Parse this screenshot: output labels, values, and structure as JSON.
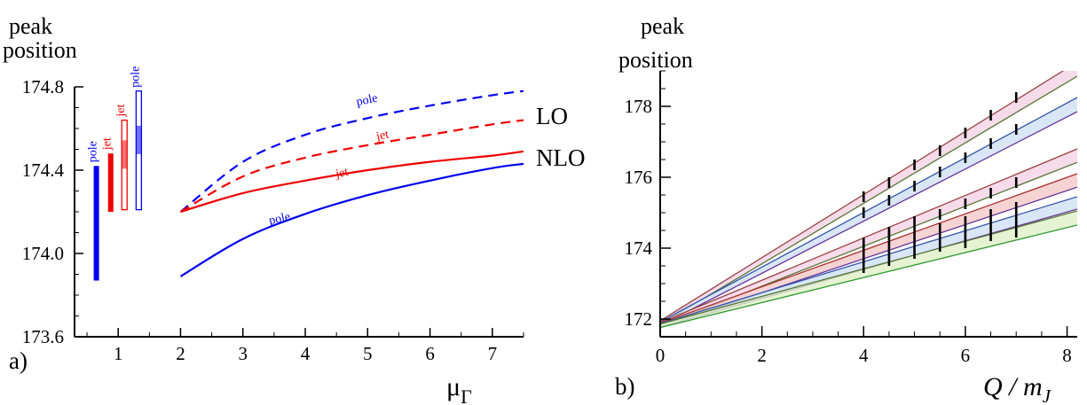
{
  "chart_data": [
    {
      "type": "line",
      "panel_label": "a)",
      "title": "",
      "ylabel": [
        "peak",
        "position"
      ],
      "xlabel": "μ",
      "xlabel_sub": "Γ",
      "xlim": [
        0.3,
        7.5
      ],
      "ylim": [
        173.6,
        174.8
      ],
      "xticks": [
        1,
        2,
        3,
        4,
        5,
        6,
        7
      ],
      "yticks": [
        173.6,
        174.0,
        174.4,
        174.8
      ],
      "ytick_labels": [
        "173.6",
        "174.0",
        "174.4",
        "174.8"
      ],
      "grid": false,
      "series": [
        {
          "name": "pole",
          "order": "LO",
          "color": "#0000ee",
          "dashed": true,
          "x": [
            2,
            3,
            4,
            5,
            6,
            7,
            7.5
          ],
          "y": [
            174.2,
            174.44,
            174.57,
            174.65,
            174.71,
            174.76,
            174.78
          ]
        },
        {
          "name": "jet",
          "order": "LO",
          "color": "#ee0000",
          "dashed": true,
          "x": [
            2,
            3,
            4,
            5,
            6,
            7,
            7.5
          ],
          "y": [
            174.2,
            174.37,
            174.46,
            174.52,
            174.57,
            174.62,
            174.64
          ]
        },
        {
          "name": "jet",
          "order": "NLO",
          "color": "#ee0000",
          "dashed": false,
          "x": [
            2,
            3,
            4,
            5,
            6,
            7,
            7.5
          ],
          "y": [
            174.2,
            174.29,
            174.35,
            174.4,
            174.44,
            174.47,
            174.49
          ]
        },
        {
          "name": "pole",
          "order": "NLO",
          "color": "#0000ee",
          "dashed": false,
          "x": [
            2,
            3,
            4,
            5,
            6,
            7,
            7.5
          ],
          "y": [
            173.89,
            174.07,
            174.19,
            174.28,
            174.35,
            174.41,
            174.43
          ]
        }
      ],
      "curve_labels": [
        {
          "text": "pole",
          "color": "#0000ee",
          "x": 5.0,
          "y": 174.72
        },
        {
          "text": "jet",
          "color": "#ee0000",
          "x": 5.25,
          "y": 174.55
        },
        {
          "text": "jet",
          "color": "#ee0000",
          "x": 4.6,
          "y": 174.37
        },
        {
          "text": "pole",
          "color": "#0000ee",
          "x": 3.6,
          "y": 174.15
        }
      ],
      "right_labels": [
        {
          "text": "LO",
          "y": 174.66
        },
        {
          "text": "NLO",
          "y": 174.46
        }
      ],
      "error_bars": [
        {
          "label": "pole",
          "color": "#0000ee",
          "x": 0.65,
          "y_low": 173.87,
          "y_high": 174.42,
          "style": "solid"
        },
        {
          "label": "jet",
          "color": "#ee0000",
          "x": 0.88,
          "y_low": 174.2,
          "y_high": 174.48,
          "style": "solid"
        },
        {
          "label": "jet",
          "color": "#ee0000",
          "x": 1.1,
          "y_low": 174.21,
          "y_high": 174.64,
          "style": "open"
        },
        {
          "label": "pole",
          "color": "#0000ee",
          "x": 1.33,
          "y_low": 174.21,
          "y_high": 174.78,
          "style": "open"
        }
      ]
    },
    {
      "type": "line",
      "panel_label": "b)",
      "title": "",
      "ylabel": [
        "peak",
        "position"
      ],
      "xlabel": "Q / m",
      "xlabel_sub": "J",
      "xlim": [
        0,
        8.2
      ],
      "ylim": [
        171.5,
        179.0
      ],
      "xticks": [
        0,
        2,
        4,
        6,
        8
      ],
      "yticks": [
        172,
        174,
        176,
        178
      ],
      "ytick_labels": [
        "172",
        "174",
        "176",
        "178"
      ],
      "grid": false,
      "bands": [
        {
          "fill": "#f4d2e6",
          "x": [
            0,
            8.2
          ],
          "upper": [
            171.95,
            179.25
          ],
          "lower": [
            171.85,
            178.85
          ],
          "edge_upper": "#994444",
          "edge_lower": "#557733"
        },
        {
          "fill": "#cfe0f4",
          "x": [
            0,
            8.2
          ],
          "upper": [
            171.92,
            178.25
          ],
          "lower": [
            171.82,
            177.85
          ],
          "edge_upper": "#3355aa",
          "edge_lower": "#663399"
        },
        {
          "fill": "#f4d2e6",
          "x": [
            0,
            8.2
          ],
          "upper": [
            171.9,
            176.8
          ],
          "lower": [
            171.8,
            176.42
          ],
          "edge_upper": "#994444",
          "edge_lower": "#557733"
        },
        {
          "fill": "#f4c8c8",
          "x": [
            0,
            8.2
          ],
          "upper": [
            171.88,
            176.1
          ],
          "lower": [
            171.78,
            175.72
          ],
          "edge_upper": "#aa3333",
          "edge_lower": "#663399"
        },
        {
          "fill": "#cfe0f4",
          "x": [
            0,
            8.2
          ],
          "upper": [
            171.87,
            175.45
          ],
          "lower": [
            171.77,
            175.1
          ],
          "edge_upper": "#3355aa",
          "edge_lower": "#663399"
        },
        {
          "fill": "#dff0c8",
          "x": [
            0,
            8.2
          ],
          "upper": [
            171.86,
            175.05
          ],
          "lower": [
            171.76,
            174.65
          ],
          "edge_upper": "#557733",
          "edge_lower": "#339933"
        }
      ],
      "error_bars": [
        {
          "x": 4.0,
          "y_low": 175.3,
          "y_high": 175.6
        },
        {
          "x": 4.0,
          "y_low": 174.85,
          "y_high": 175.15
        },
        {
          "x": 4.0,
          "y_low": 174.0,
          "y_high": 174.3
        },
        {
          "x": 4.0,
          "y_low": 173.3,
          "y_high": 174.2
        },
        {
          "x": 4.5,
          "y_low": 175.7,
          "y_high": 176.0
        },
        {
          "x": 4.5,
          "y_low": 175.2,
          "y_high": 175.5
        },
        {
          "x": 4.5,
          "y_low": 174.3,
          "y_high": 174.6
        },
        {
          "x": 4.5,
          "y_low": 173.5,
          "y_high": 174.5
        },
        {
          "x": 5.0,
          "y_low": 176.2,
          "y_high": 176.5
        },
        {
          "x": 5.0,
          "y_low": 175.6,
          "y_high": 175.9
        },
        {
          "x": 5.0,
          "y_low": 174.6,
          "y_high": 174.9
        },
        {
          "x": 5.0,
          "y_low": 173.7,
          "y_high": 174.6
        },
        {
          "x": 5.5,
          "y_low": 176.6,
          "y_high": 176.9
        },
        {
          "x": 5.5,
          "y_low": 176.0,
          "y_high": 176.3
        },
        {
          "x": 5.5,
          "y_low": 174.8,
          "y_high": 175.1
        },
        {
          "x": 5.5,
          "y_low": 173.9,
          "y_high": 174.7
        },
        {
          "x": 6.0,
          "y_low": 177.1,
          "y_high": 177.4
        },
        {
          "x": 6.0,
          "y_low": 176.4,
          "y_high": 176.7
        },
        {
          "x": 6.0,
          "y_low": 175.1,
          "y_high": 175.4
        },
        {
          "x": 6.0,
          "y_low": 174.0,
          "y_high": 174.9
        },
        {
          "x": 6.5,
          "y_low": 177.6,
          "y_high": 177.9
        },
        {
          "x": 6.5,
          "y_low": 176.8,
          "y_high": 177.1
        },
        {
          "x": 6.5,
          "y_low": 175.4,
          "y_high": 175.7
        },
        {
          "x": 6.5,
          "y_low": 174.2,
          "y_high": 175.1
        },
        {
          "x": 7.0,
          "y_low": 178.1,
          "y_high": 178.4
        },
        {
          "x": 7.0,
          "y_low": 177.2,
          "y_high": 177.5
        },
        {
          "x": 7.0,
          "y_low": 175.7,
          "y_high": 176.0
        },
        {
          "x": 7.0,
          "y_low": 174.3,
          "y_high": 175.3
        }
      ]
    }
  ]
}
